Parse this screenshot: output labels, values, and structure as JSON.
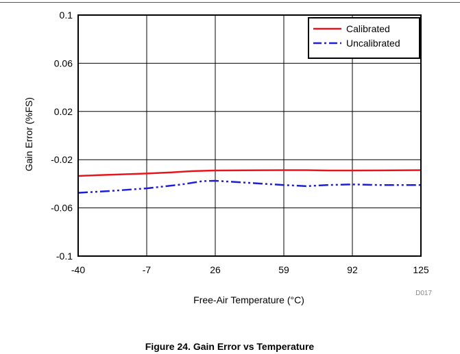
{
  "chart_data": {
    "type": "line",
    "xlabel": "Free-Air Temperature (°C)",
    "ylabel": "Gain Error (%FS)",
    "xlim": [
      -40,
      125
    ],
    "ylim": [
      -0.1,
      0.1
    ],
    "x_ticks": [
      -40,
      -7,
      26,
      59,
      92,
      125
    ],
    "y_ticks": [
      0.1,
      0.06,
      0.02,
      -0.02,
      -0.06,
      -0.1
    ],
    "x_tick_labels": [
      "-40",
      "-7",
      "26",
      "59",
      "92",
      "125"
    ],
    "y_tick_labels": [
      "0.1",
      "0.06",
      "0.02",
      "-0.02",
      "-0.06",
      "-0.1"
    ],
    "grid": true,
    "legend_position": "top-right",
    "series": [
      {
        "name": "Calibrated",
        "color": "#e8141c",
        "style": "solid",
        "x": [
          -40,
          -30,
          -20,
          -7,
          5,
          15,
          26,
          40,
          59,
          70,
          80,
          92,
          105,
          125
        ],
        "y": [
          -0.0335,
          -0.0328,
          -0.0322,
          -0.0315,
          -0.0305,
          -0.0295,
          -0.029,
          -0.0288,
          -0.0287,
          -0.0287,
          -0.029,
          -0.029,
          -0.0289,
          -0.0287
        ]
      },
      {
        "name": "Uncalibrated",
        "color": "#1e1ed2",
        "style": "dash-dot-dot",
        "x": [
          -40,
          -25,
          -7,
          10,
          20,
          26,
          40,
          59,
          70,
          80,
          92,
          105,
          125
        ],
        "y": [
          -0.0475,
          -0.046,
          -0.0438,
          -0.0405,
          -0.0378,
          -0.0375,
          -0.039,
          -0.041,
          -0.042,
          -0.041,
          -0.0405,
          -0.041,
          -0.041
        ]
      }
    ],
    "figure_id": "D017"
  },
  "caption": "Figure 24. Gain Error vs Temperature"
}
